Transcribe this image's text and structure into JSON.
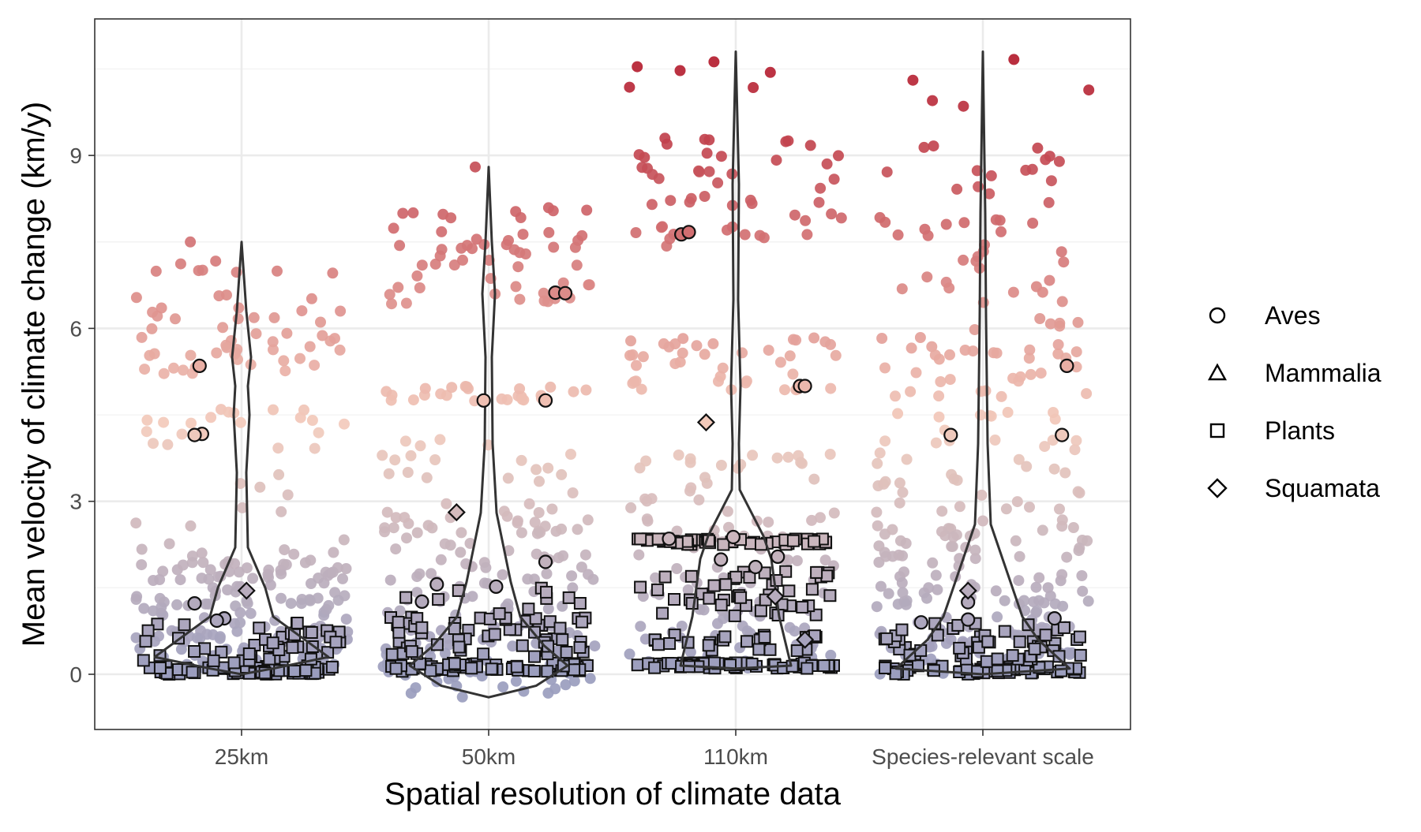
{
  "chart_data": {
    "type": "scatter",
    "subtype": "jittered strip plot with violin overlays",
    "title": "",
    "xlabel": "Spatial resolution of climate data",
    "ylabel": "Mean velocity of climate change (km/y)",
    "categories": [
      "25km",
      "50km",
      "110km",
      "Species-relevant scale"
    ],
    "yticks": [
      "0",
      "3",
      "6",
      "9"
    ],
    "ytick_values": [
      0,
      3,
      6,
      9
    ],
    "ylim": [
      -0.9,
      11.4
    ],
    "grid": true,
    "color_scale": {
      "low": "#9a9dbe",
      "mid": "#f3cbbc",
      "high": "#b2182b"
    },
    "violins": [
      {
        "category": "25km",
        "ymin": 0.0,
        "ymax": 7.5
      },
      {
        "category": "50km",
        "ymin": -0.4,
        "ymax": 8.8
      },
      {
        "category": "110km",
        "ymin": 0.1,
        "ymax": 10.8
      },
      {
        "category": "Species-relevant scale",
        "ymin": 0.0,
        "ymax": 10.8
      }
    ],
    "legend": {
      "position": "right",
      "entries": [
        {
          "label": "Aves",
          "shape": "circle"
        },
        {
          "label": "Mammalia",
          "shape": "triangle"
        },
        {
          "label": "Plants",
          "shape": "square"
        },
        {
          "label": "Squamata",
          "shape": "diamond"
        }
      ]
    },
    "highlighted_points": [
      {
        "category": "25km",
        "class": "Aves",
        "x_offset": -0.17,
        "y": 5.35
      },
      {
        "category": "25km",
        "class": "Aves",
        "x_offset": -0.16,
        "y": 4.17
      },
      {
        "category": "25km",
        "class": "Aves",
        "x_offset": -0.19,
        "y": 4.15
      },
      {
        "category": "25km",
        "class": "Aves",
        "x_offset": -0.07,
        "y": 0.97
      },
      {
        "category": "25km",
        "class": "Aves",
        "x_offset": -0.1,
        "y": 0.93
      },
      {
        "category": "25km",
        "class": "Aves",
        "x_offset": -0.19,
        "y": 1.23
      },
      {
        "category": "25km",
        "class": "Squamata",
        "x_offset": 0.02,
        "y": 1.45
      },
      {
        "category": "50km",
        "class": "Aves",
        "x_offset": 0.27,
        "y": 6.62
      },
      {
        "category": "50km",
        "class": "Aves",
        "x_offset": 0.31,
        "y": 6.61
      },
      {
        "category": "50km",
        "class": "Aves",
        "x_offset": -0.02,
        "y": 4.75
      },
      {
        "category": "50km",
        "class": "Aves",
        "x_offset": 0.23,
        "y": 4.75
      },
      {
        "category": "50km",
        "class": "Aves",
        "x_offset": 0.23,
        "y": 1.95
      },
      {
        "category": "50km",
        "class": "Aves",
        "x_offset": -0.21,
        "y": 1.56
      },
      {
        "category": "50km",
        "class": "Aves",
        "x_offset": 0.03,
        "y": 1.52
      },
      {
        "category": "50km",
        "class": "Aves",
        "x_offset": -0.27,
        "y": 1.26
      },
      {
        "category": "50km",
        "class": "Squamata",
        "x_offset": -0.13,
        "y": 2.81
      },
      {
        "category": "110km",
        "class": "Aves",
        "x_offset": -0.22,
        "y": 7.63
      },
      {
        "category": "110km",
        "class": "Aves",
        "x_offset": -0.19,
        "y": 7.67
      },
      {
        "category": "110km",
        "class": "Aves",
        "x_offset": 0.26,
        "y": 5.0
      },
      {
        "category": "110km",
        "class": "Aves",
        "x_offset": 0.28,
        "y": 5.0
      },
      {
        "category": "110km",
        "class": "Aves",
        "x_offset": -0.27,
        "y": 2.35
      },
      {
        "category": "110km",
        "class": "Aves",
        "x_offset": -0.01,
        "y": 2.38
      },
      {
        "category": "110km",
        "class": "Aves",
        "x_offset": -0.06,
        "y": 1.99
      },
      {
        "category": "110km",
        "class": "Aves",
        "x_offset": 0.17,
        "y": 2.04
      },
      {
        "category": "110km",
        "class": "Aves",
        "x_offset": 0.08,
        "y": 1.86
      },
      {
        "category": "110km",
        "class": "Squamata",
        "x_offset": -0.12,
        "y": 4.37
      },
      {
        "category": "110km",
        "class": "Squamata",
        "x_offset": 0.28,
        "y": 0.6
      },
      {
        "category": "110km",
        "class": "Squamata",
        "x_offset": 0.16,
        "y": 1.35
      },
      {
        "category": "Species-relevant scale",
        "class": "Aves",
        "x_offset": 0.34,
        "y": 5.35
      },
      {
        "category": "Species-relevant scale",
        "class": "Aves",
        "x_offset": -0.13,
        "y": 4.15
      },
      {
        "category": "Species-relevant scale",
        "class": "Aves",
        "x_offset": 0.32,
        "y": 4.15
      },
      {
        "category": "Species-relevant scale",
        "class": "Aves",
        "x_offset": -0.06,
        "y": 1.25
      },
      {
        "category": "Species-relevant scale",
        "class": "Aves",
        "x_offset": -0.06,
        "y": 0.95
      },
      {
        "category": "Species-relevant scale",
        "class": "Aves",
        "x_offset": 0.29,
        "y": 0.97
      },
      {
        "category": "Species-relevant scale",
        "class": "Aves",
        "x_offset": -0.25,
        "y": 0.9
      },
      {
        "category": "Species-relevant scale",
        "class": "Squamata",
        "x_offset": -0.06,
        "y": 1.45
      }
    ]
  }
}
